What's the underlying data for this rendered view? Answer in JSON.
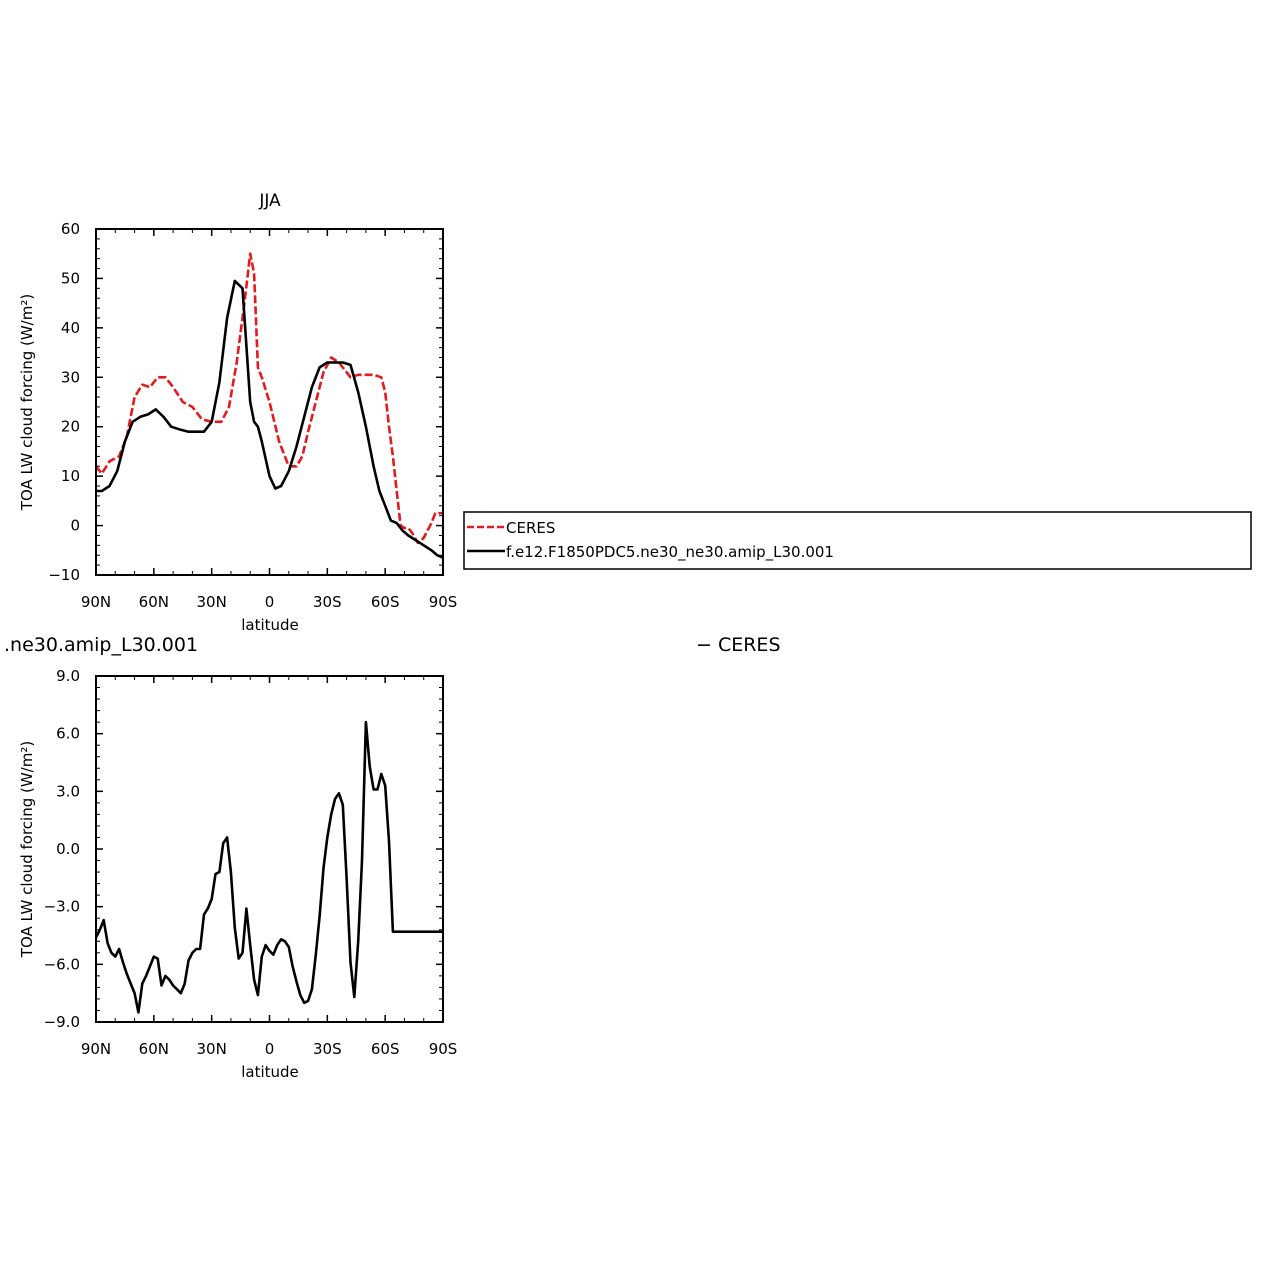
{
  "chart_data": [
    {
      "type": "line",
      "title": "JJA",
      "xlabel": "latitude",
      "ylabel": "TOA LW cloud forcing (W/m²)",
      "xlim": [
        90,
        -90
      ],
      "ylim": [
        -10,
        60
      ],
      "x_ticks": [
        90,
        60,
        30,
        0,
        -30,
        -60,
        -90
      ],
      "x_tick_labels": [
        "90N",
        "60N",
        "30N",
        "0",
        "30S",
        "60S",
        "90S"
      ],
      "y_ticks": [
        -10,
        0,
        10,
        20,
        30,
        40,
        50,
        60
      ],
      "y_tick_labels": [
        "−10",
        "0",
        "10",
        "20",
        "30",
        "40",
        "50",
        "60"
      ],
      "legend": {
        "position": "right",
        "entries": [
          "CERES",
          "f.e12.F1850PDC5.ne30_ne30.amip_L30.001"
        ]
      },
      "series": [
        {
          "name": "CERES",
          "color": "#e41a1c",
          "dash": "dashed",
          "x": [
            90,
            87,
            83,
            78,
            74,
            70,
            66,
            62,
            58,
            54,
            50,
            45,
            40,
            35,
            30,
            25,
            21,
            17,
            13,
            10,
            8,
            6,
            4,
            0,
            -5,
            -10,
            -14,
            -17,
            -20,
            -24,
            -28,
            -32,
            -36,
            -40,
            -42,
            -46,
            -50,
            -54,
            -58,
            -60,
            -62,
            -64,
            -66,
            -68,
            -70,
            -72,
            -74,
            -77,
            -80,
            -84,
            -86,
            -88,
            -90
          ],
          "y": [
            12,
            10.5,
            13,
            14,
            18,
            26,
            28.5,
            28,
            30,
            30,
            28,
            25,
            24,
            21.5,
            21,
            21,
            24,
            33,
            45,
            55,
            51,
            32,
            30,
            25,
            17,
            12,
            12,
            14,
            19,
            25,
            31,
            34,
            33,
            31,
            30,
            30.5,
            30.5,
            30.5,
            30,
            27,
            20,
            14,
            7,
            0,
            -0.5,
            -0.5,
            -1.5,
            -3.5,
            -2.5,
            0.5,
            2.5,
            2.5,
            2.5
          ]
        },
        {
          "name": "f.e12.F1850PDC5.ne30_ne30.amip_L30.001",
          "color": "#000000",
          "dash": "solid",
          "x": [
            90,
            87,
            83,
            79,
            75,
            71,
            67,
            63,
            59,
            55,
            51,
            47,
            42,
            38,
            34,
            30,
            26,
            22,
            18,
            14,
            10,
            8,
            6,
            4,
            0,
            -3,
            -6,
            -10,
            -14,
            -18,
            -22,
            -26,
            -30,
            -34,
            -38,
            -42,
            -46,
            -50,
            -54,
            -57,
            -60,
            -63,
            -66,
            -69,
            -72,
            -76,
            -80,
            -84,
            -87,
            -90
          ],
          "y": [
            7,
            7,
            8,
            11,
            17,
            21,
            22,
            22.5,
            23.5,
            22,
            20,
            19.5,
            19,
            19,
            19,
            21,
            29,
            42,
            49.5,
            48,
            25,
            21,
            20,
            17,
            10,
            7.5,
            8,
            11,
            16,
            22,
            28,
            32,
            33,
            33,
            33,
            32.5,
            27,
            20,
            12,
            7,
            4,
            1,
            0.5,
            -1,
            -2,
            -3,
            -4,
            -5,
            -6,
            -6.5
          ]
        }
      ]
    },
    {
      "type": "line",
      "title": ".ne30.amip_L30.001",
      "title_right": "−  CERES",
      "xlabel": "latitude",
      "ylabel": "TOA LW cloud forcing (W/m²)",
      "xlim": [
        90,
        -90
      ],
      "ylim": [
        -9,
        9
      ],
      "x_ticks": [
        90,
        60,
        30,
        0,
        -30,
        -60,
        -90
      ],
      "x_tick_labels": [
        "90N",
        "60N",
        "30N",
        "0",
        "30S",
        "60S",
        "90S"
      ],
      "y_ticks": [
        -9,
        -6,
        -3,
        0,
        3,
        6,
        9
      ],
      "y_tick_labels": [
        "−9.0",
        "−6.0",
        "−3.0",
        "0.0",
        "3.0",
        "6.0",
        "9.0"
      ],
      "series": [
        {
          "color": "#000000",
          "dash": "solid",
          "x": [
            90,
            88,
            86,
            84,
            82,
            80,
            78,
            76,
            74,
            72,
            70,
            68,
            66,
            64,
            62,
            60,
            58,
            56,
            54,
            52,
            50,
            48,
            46,
            44,
            42,
            40,
            38,
            36,
            34,
            32,
            30,
            28,
            26,
            24,
            22,
            20,
            18,
            16,
            14,
            12,
            10,
            8,
            6,
            4,
            2,
            0,
            -2,
            -4,
            -6,
            -8,
            -10,
            -12,
            -14,
            -16,
            -18,
            -20,
            -22,
            -24,
            -26,
            -28,
            -30,
            -32,
            -34,
            -36,
            -38,
            -40,
            -42,
            -44,
            -46,
            -48,
            -50,
            -52,
            -54,
            -56,
            -58,
            -60,
            -62,
            -64,
            -66,
            -68,
            -70,
            -72,
            -74,
            -76,
            -78,
            -80,
            -82,
            -84,
            -86,
            -88,
            -90
          ],
          "y": [
            -4.6,
            -4.2,
            -3.7,
            -4.9,
            -5.4,
            -5.6,
            -5.2,
            -5.9,
            -6.5,
            -7.0,
            -7.5,
            -8.5,
            -7.0,
            -6.6,
            -6.1,
            -5.6,
            -5.7,
            -7.1,
            -6.6,
            -6.8,
            -7.1,
            -7.3,
            -7.5,
            -7.0,
            -5.8,
            -5.4,
            -5.2,
            -5.2,
            -3.4,
            -3.1,
            -2.6,
            -1.3,
            -1.2,
            0.3,
            0.6,
            -1.2,
            -4.1,
            -5.7,
            -5.4,
            -3.1,
            -5.0,
            -6.8,
            -7.6,
            -5.6,
            -5.0,
            -5.3,
            -5.5,
            -5.0,
            -4.7,
            -4.8,
            -5.1,
            -6.1,
            -6.9,
            -7.6,
            -8.0,
            -7.9,
            -7.3,
            -5.5,
            -3.5,
            -1.0,
            0.6,
            1.8,
            2.6,
            2.9,
            2.3,
            -1.5,
            -5.9,
            -7.7,
            -4.8,
            -0.6,
            6.6,
            4.3,
            3.1,
            3.1,
            3.9,
            3.3,
            0.4,
            -4.3,
            -4.3,
            -4.3,
            -4.3,
            -4.3,
            -4.3,
            -4.3,
            -4.3,
            -4.3,
            -4.3,
            -4.3,
            -4.3,
            -4.3,
            -4.3
          ]
        }
      ]
    }
  ]
}
